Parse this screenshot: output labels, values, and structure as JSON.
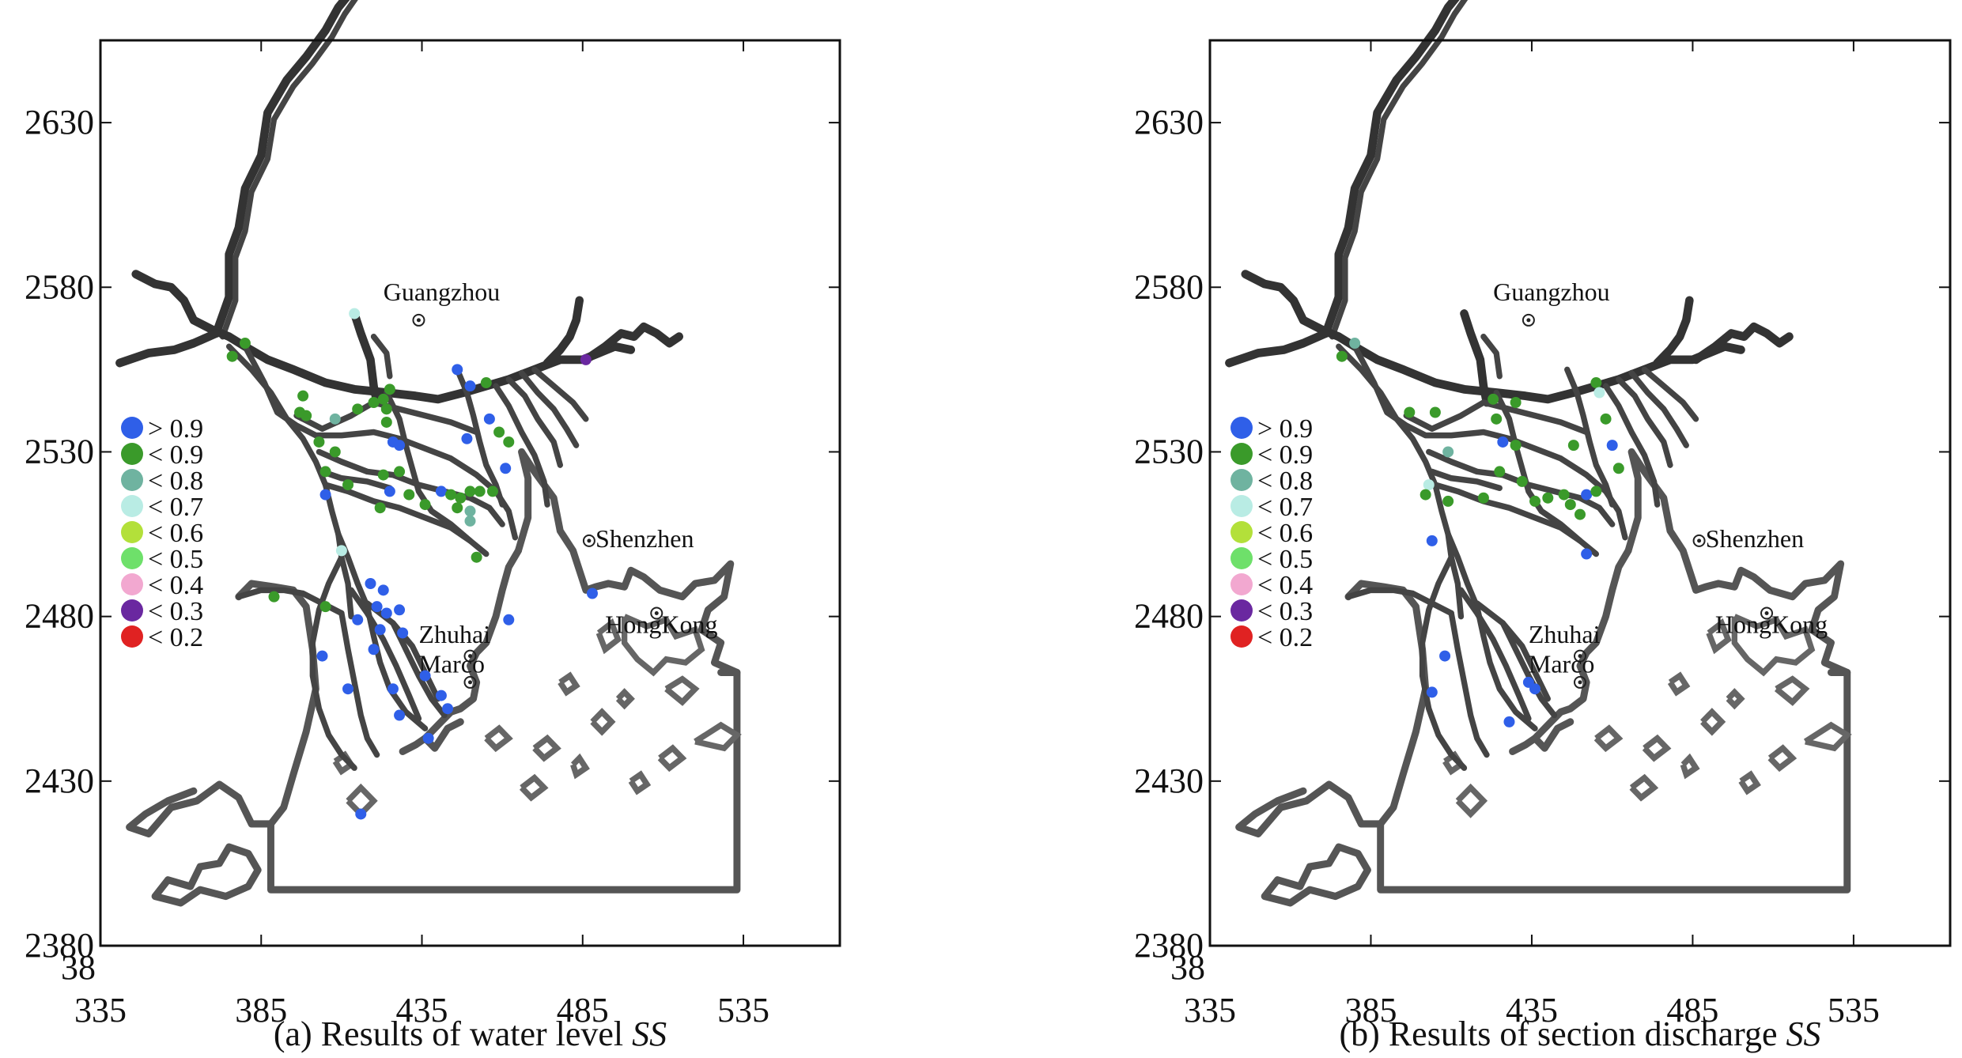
{
  "axes": {
    "x_ticks": [
      335,
      385,
      435,
      485,
      535
    ],
    "y_ticks": [
      2630,
      2580,
      2530,
      2480,
      2430,
      2380
    ],
    "corner_label": "38"
  },
  "legend": [
    {
      "label": "> 0.9",
      "color": "#2f5fe8"
    },
    {
      "label": "< 0.9",
      "color": "#3a9a2a"
    },
    {
      "label": "< 0.8",
      "color": "#6fb3a0"
    },
    {
      "label": "< 0.7",
      "color": "#b9ece4"
    },
    {
      "label": "< 0.6",
      "color": "#b3e03a"
    },
    {
      "label": "< 0.5",
      "color": "#6ee06a"
    },
    {
      "label": "< 0.4",
      "color": "#f2a8d0"
    },
    {
      "label": "< 0.3",
      "color": "#6a28a0"
    },
    {
      "label": "< 0.2",
      "color": "#e02222"
    }
  ],
  "cities": {
    "guangzhou": "Guangzhou",
    "shenzhen": "Shenzhen",
    "hongkong": "HongKong",
    "zhuhai": "Zhuhai",
    "marco": "Marco"
  },
  "panels": [
    {
      "caption_prefix": "(a) Results of water level ",
      "caption_italic": "SS"
    },
    {
      "caption_prefix": "(b) Results of section discharge ",
      "caption_italic": "SS"
    }
  ],
  "stations_a": [
    {
      "x": 376,
      "y": 2559,
      "c": 1
    },
    {
      "x": 380,
      "y": 2563,
      "c": 1
    },
    {
      "x": 414,
      "y": 2572,
      "c": 3
    },
    {
      "x": 398,
      "y": 2547,
      "c": 1
    },
    {
      "x": 397,
      "y": 2542,
      "c": 1
    },
    {
      "x": 399,
      "y": 2541,
      "c": 1
    },
    {
      "x": 408,
      "y": 2540,
      "c": 2
    },
    {
      "x": 415,
      "y": 2543,
      "c": 1
    },
    {
      "x": 423,
      "y": 2546,
      "c": 1
    },
    {
      "x": 425,
      "y": 2549,
      "c": 1
    },
    {
      "x": 420,
      "y": 2545,
      "c": 1
    },
    {
      "x": 424,
      "y": 2543,
      "c": 1
    },
    {
      "x": 424,
      "y": 2539,
      "c": 1
    },
    {
      "x": 426,
      "y": 2533,
      "c": 0
    },
    {
      "x": 428,
      "y": 2532,
      "c": 0
    },
    {
      "x": 408,
      "y": 2530,
      "c": 1
    },
    {
      "x": 403,
      "y": 2533,
      "c": 1
    },
    {
      "x": 405,
      "y": 2524,
      "c": 1
    },
    {
      "x": 405,
      "y": 2517,
      "c": 0
    },
    {
      "x": 412,
      "y": 2520,
      "c": 1
    },
    {
      "x": 423,
      "y": 2523,
      "c": 1
    },
    {
      "x": 428,
      "y": 2524,
      "c": 1
    },
    {
      "x": 425,
      "y": 2518,
      "c": 0
    },
    {
      "x": 431,
      "y": 2517,
      "c": 1
    },
    {
      "x": 422,
      "y": 2513,
      "c": 1
    },
    {
      "x": 436,
      "y": 2514,
      "c": 1
    },
    {
      "x": 441,
      "y": 2518,
      "c": 0
    },
    {
      "x": 444,
      "y": 2517,
      "c": 1
    },
    {
      "x": 447,
      "y": 2516,
      "c": 1
    },
    {
      "x": 450,
      "y": 2512,
      "c": 2
    },
    {
      "x": 446,
      "y": 2513,
      "c": 1
    },
    {
      "x": 450,
      "y": 2518,
      "c": 1
    },
    {
      "x": 453,
      "y": 2518,
      "c": 1
    },
    {
      "x": 450,
      "y": 2509,
      "c": 2
    },
    {
      "x": 457,
      "y": 2518,
      "c": 1
    },
    {
      "x": 452,
      "y": 2498,
      "c": 1
    },
    {
      "x": 446,
      "y": 2555,
      "c": 0
    },
    {
      "x": 450,
      "y": 2550,
      "c": 0
    },
    {
      "x": 455,
      "y": 2551,
      "c": 1
    },
    {
      "x": 449,
      "y": 2534,
      "c": 0
    },
    {
      "x": 459,
      "y": 2536,
      "c": 1
    },
    {
      "x": 462,
      "y": 2533,
      "c": 1
    },
    {
      "x": 456,
      "y": 2540,
      "c": 0
    },
    {
      "x": 461,
      "y": 2525,
      "c": 0
    },
    {
      "x": 486,
      "y": 2558,
      "c": 7
    },
    {
      "x": 410,
      "y": 2500,
      "c": 3
    },
    {
      "x": 389,
      "y": 2486,
      "c": 1
    },
    {
      "x": 405,
      "y": 2483,
      "c": 1
    },
    {
      "x": 419,
      "y": 2490,
      "c": 0
    },
    {
      "x": 423,
      "y": 2488,
      "c": 0
    },
    {
      "x": 421,
      "y": 2483,
      "c": 0
    },
    {
      "x": 424,
      "y": 2481,
      "c": 0
    },
    {
      "x": 428,
      "y": 2482,
      "c": 0
    },
    {
      "x": 422,
      "y": 2476,
      "c": 0
    },
    {
      "x": 429,
      "y": 2475,
      "c": 0
    },
    {
      "x": 415,
      "y": 2479,
      "c": 0
    },
    {
      "x": 420,
      "y": 2470,
      "c": 0
    },
    {
      "x": 404,
      "y": 2468,
      "c": 0
    },
    {
      "x": 412,
      "y": 2458,
      "c": 0
    },
    {
      "x": 426,
      "y": 2458,
      "c": 0
    },
    {
      "x": 436,
      "y": 2462,
      "c": 0
    },
    {
      "x": 441,
      "y": 2456,
      "c": 0
    },
    {
      "x": 443,
      "y": 2452,
      "c": 0
    },
    {
      "x": 428,
      "y": 2450,
      "c": 0
    },
    {
      "x": 437,
      "y": 2443,
      "c": 0
    },
    {
      "x": 462,
      "y": 2479,
      "c": 0
    },
    {
      "x": 488,
      "y": 2487,
      "c": 0
    },
    {
      "x": 416,
      "y": 2420,
      "c": 0
    }
  ],
  "stations_b": [
    {
      "x": 376,
      "y": 2559,
      "c": 1
    },
    {
      "x": 380,
      "y": 2563,
      "c": 2
    },
    {
      "x": 397,
      "y": 2542,
      "c": 1
    },
    {
      "x": 405,
      "y": 2542,
      "c": 1
    },
    {
      "x": 423,
      "y": 2546,
      "c": 1
    },
    {
      "x": 430,
      "y": 2545,
      "c": 1
    },
    {
      "x": 424,
      "y": 2540,
      "c": 1
    },
    {
      "x": 426,
      "y": 2533,
      "c": 0
    },
    {
      "x": 430,
      "y": 2532,
      "c": 1
    },
    {
      "x": 409,
      "y": 2530,
      "c": 2
    },
    {
      "x": 403,
      "y": 2520,
      "c": 3
    },
    {
      "x": 402,
      "y": 2517,
      "c": 1
    },
    {
      "x": 409,
      "y": 2515,
      "c": 1
    },
    {
      "x": 420,
      "y": 2516,
      "c": 1
    },
    {
      "x": 425,
      "y": 2524,
      "c": 1
    },
    {
      "x": 432,
      "y": 2521,
      "c": 1
    },
    {
      "x": 436,
      "y": 2515,
      "c": 1
    },
    {
      "x": 440,
      "y": 2516,
      "c": 1
    },
    {
      "x": 445,
      "y": 2517,
      "c": 1
    },
    {
      "x": 447,
      "y": 2514,
      "c": 1
    },
    {
      "x": 450,
      "y": 2511,
      "c": 1
    },
    {
      "x": 452,
      "y": 2517,
      "c": 0
    },
    {
      "x": 455,
      "y": 2518,
      "c": 1
    },
    {
      "x": 448,
      "y": 2532,
      "c": 1
    },
    {
      "x": 455,
      "y": 2551,
      "c": 1
    },
    {
      "x": 456,
      "y": 2548,
      "c": 3
    },
    {
      "x": 458,
      "y": 2540,
      "c": 1
    },
    {
      "x": 460,
      "y": 2532,
      "c": 0
    },
    {
      "x": 462,
      "y": 2525,
      "c": 1
    },
    {
      "x": 404,
      "y": 2503,
      "c": 0
    },
    {
      "x": 452,
      "y": 2499,
      "c": 0
    },
    {
      "x": 408,
      "y": 2468,
      "c": 0
    },
    {
      "x": 404,
      "y": 2457,
      "c": 0
    },
    {
      "x": 428,
      "y": 2448,
      "c": 0
    },
    {
      "x": 436,
      "y": 2458,
      "c": 0
    },
    {
      "x": 434,
      "y": 2460,
      "c": 0
    }
  ]
}
